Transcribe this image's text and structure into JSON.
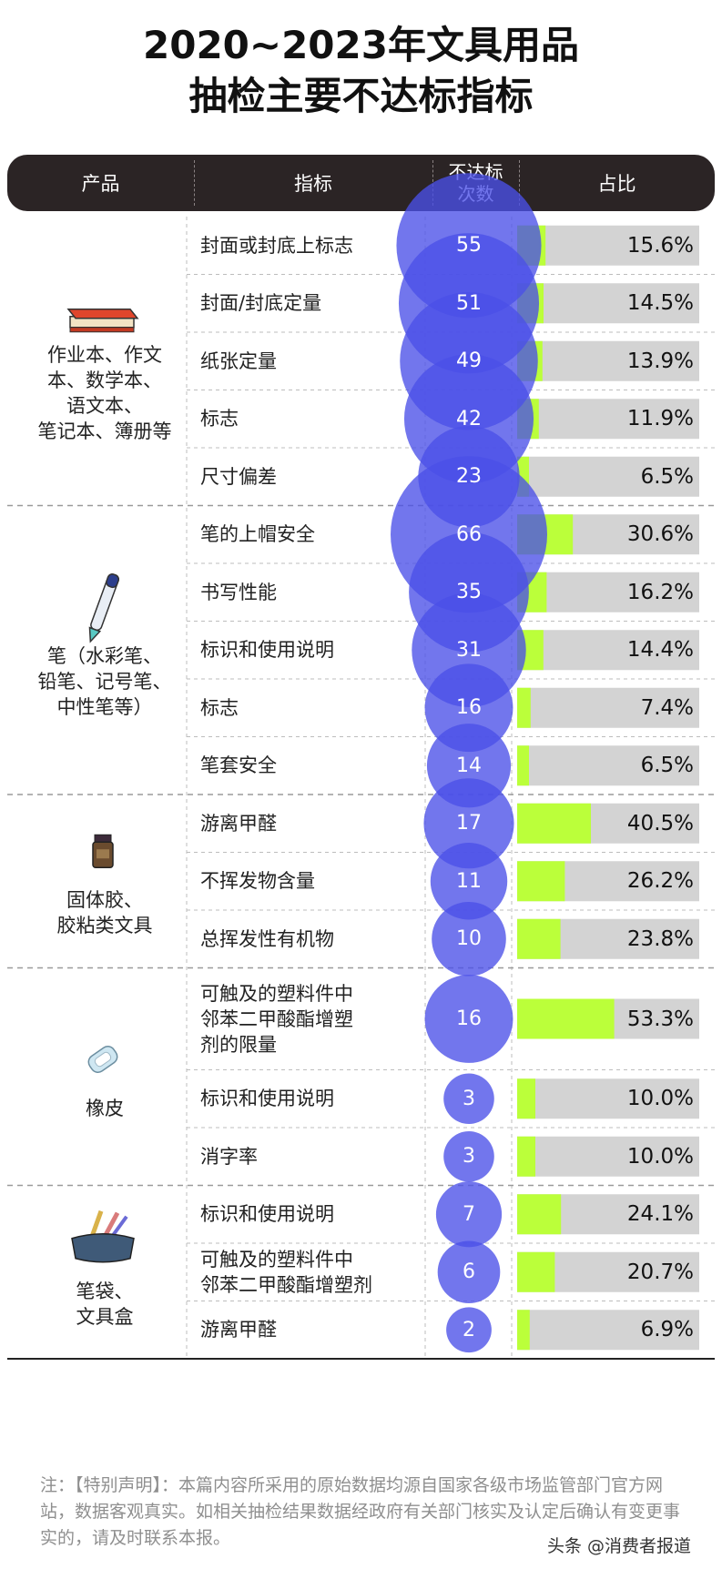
{
  "title": {
    "line1": "2020~2023年文具用品",
    "line2": "抽检主要不达标指标"
  },
  "header": {
    "product": "产品",
    "indicator": "指标",
    "count_line1": "不达标",
    "count_line2": "次数",
    "ratio": "占比"
  },
  "colors": {
    "header_bg": "#2b2425",
    "bubble": "#4a50e8",
    "bar_fill": "#bbff3a",
    "bar_track": "#d3d3d3"
  },
  "chart_data": {
    "type": "table",
    "title": "2020~2023年文具用品抽检主要不达标指标",
    "columns": [
      "产品",
      "指标",
      "不达标次数",
      "占比"
    ],
    "groups": [
      {
        "product": "作业本、作文本、数学本、语文本、笔记本、簿册等",
        "product_lines": [
          "作业本、作文",
          "本、数学本、",
          "语文本、",
          "笔记本、簿册等"
        ],
        "icon": "notebook-icon",
        "rows": [
          {
            "indicator": "封面或封底上标志",
            "count": 55,
            "percent": 15.6,
            "percent_label": "15.6%"
          },
          {
            "indicator": "封面/封底定量",
            "count": 51,
            "percent": 14.5,
            "percent_label": "14.5%"
          },
          {
            "indicator": "纸张定量",
            "count": 49,
            "percent": 13.9,
            "percent_label": "13.9%"
          },
          {
            "indicator": "标志",
            "count": 42,
            "percent": 11.9,
            "percent_label": "11.9%"
          },
          {
            "indicator": "尺寸偏差",
            "count": 23,
            "percent": 6.5,
            "percent_label": "6.5%"
          }
        ]
      },
      {
        "product": "笔（水彩笔、铅笔、记号笔、中性笔等）",
        "product_lines": [
          "笔（水彩笔、",
          "铅笔、记号笔、",
          "中性笔等）"
        ],
        "icon": "pen-icon",
        "rows": [
          {
            "indicator": "笔的上帽安全",
            "count": 66,
            "percent": 30.6,
            "percent_label": "30.6%"
          },
          {
            "indicator": "书写性能",
            "count": 35,
            "percent": 16.2,
            "percent_label": "16.2%"
          },
          {
            "indicator": "标识和使用说明",
            "count": 31,
            "percent": 14.4,
            "percent_label": "14.4%"
          },
          {
            "indicator": "标志",
            "count": 16,
            "percent": 7.4,
            "percent_label": "7.4%"
          },
          {
            "indicator": "笔套安全",
            "count": 14,
            "percent": 6.5,
            "percent_label": "6.5%"
          }
        ]
      },
      {
        "product": "固体胶、胶粘类文具",
        "product_lines": [
          "固体胶、",
          "胶粘类文具"
        ],
        "icon": "glue-icon",
        "rows": [
          {
            "indicator": "游离甲醛",
            "count": 17,
            "percent": 40.5,
            "percent_label": "40.5%"
          },
          {
            "indicator": "不挥发物含量",
            "count": 11,
            "percent": 26.2,
            "percent_label": "26.2%"
          },
          {
            "indicator": "总挥发性有机物",
            "count": 10,
            "percent": 23.8,
            "percent_label": "23.8%"
          }
        ]
      },
      {
        "product": "橡皮",
        "product_lines": [
          "橡皮"
        ],
        "icon": "eraser-icon",
        "rows": [
          {
            "indicator": "可触及的塑料件中邻苯二甲酸酯增塑剂的限量",
            "indicator_lines": [
              "可触及的塑料件中",
              "邻苯二甲酸酯增塑",
              "剂的限量"
            ],
            "count": 16,
            "percent": 53.3,
            "percent_label": "53.3%"
          },
          {
            "indicator": "标识和使用说明",
            "count": 3,
            "percent": 10.0,
            "percent_label": "10.0%"
          },
          {
            "indicator": "消字率",
            "count": 3,
            "percent": 10.0,
            "percent_label": "10.0%"
          }
        ]
      },
      {
        "product": "笔袋、文具盒",
        "product_lines": [
          "笔袋、",
          "文具盒"
        ],
        "icon": "pencil-case-icon",
        "rows": [
          {
            "indicator": "标识和使用说明",
            "count": 7,
            "percent": 24.1,
            "percent_label": "24.1%"
          },
          {
            "indicator": "可触及的塑料件中邻苯二甲酸酯增塑剂",
            "indicator_lines": [
              "可触及的塑料件中",
              "邻苯二甲酸酯增塑剂"
            ],
            "count": 6,
            "percent": 20.7,
            "percent_label": "20.7%"
          },
          {
            "indicator": "游离甲醛",
            "count": 2,
            "percent": 6.9,
            "percent_label": "6.9%"
          }
        ]
      }
    ]
  },
  "footer": {
    "note": "注：【特别声明】：本篇内容所采用的原始数据均源自国家各级市场监管部门官方网站，数据客观真实。如相关抽检结果数据经政府有关部门核实及认定后确认有变更事实的，请及时联系本报。",
    "brand": "头条 @消费者报道"
  }
}
